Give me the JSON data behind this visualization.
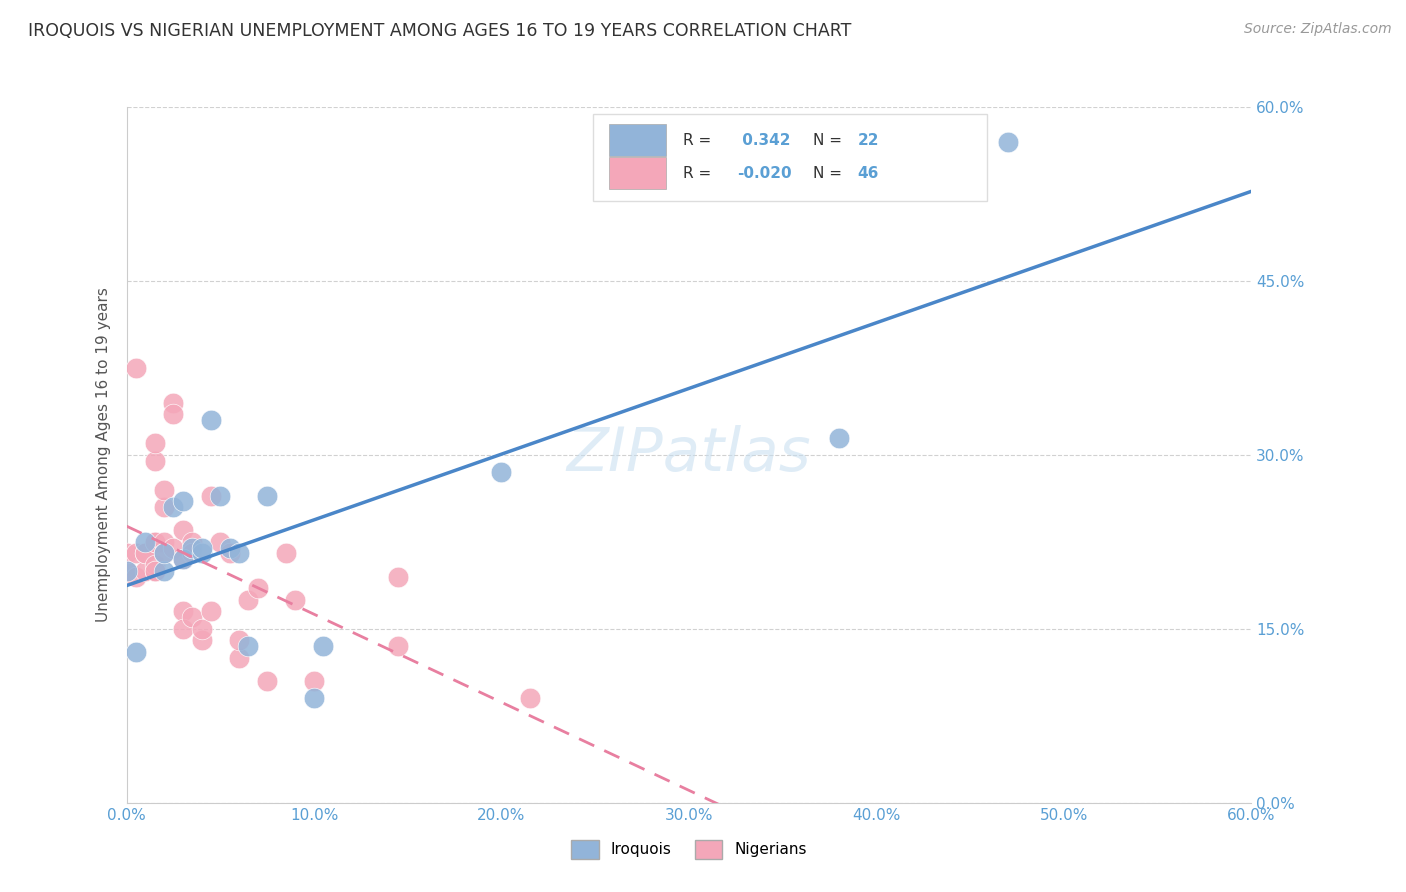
{
  "title": "IROQUOIS VS NIGERIAN UNEMPLOYMENT AMONG AGES 16 TO 19 YEARS CORRELATION CHART",
  "source": "Source: ZipAtlas.com",
  "ylabel": "Unemployment Among Ages 16 to 19 years",
  "xlim": [
    0.0,
    0.6
  ],
  "ylim": [
    0.0,
    0.6
  ],
  "xticks": [
    0.0,
    0.1,
    0.2,
    0.3,
    0.4,
    0.5,
    0.6
  ],
  "yticks": [
    0.0,
    0.15,
    0.3,
    0.45,
    0.6
  ],
  "ytick_labels_right": [
    "0.0%",
    "15.0%",
    "30.0%",
    "45.0%",
    "60.0%"
  ],
  "iroquois_color": "#92b4d9",
  "nigerian_color": "#f4a7b9",
  "iroquois_line_color": "#4a86c8",
  "nigerian_line_color": "#e87fa0",
  "R_iroquois": 0.342,
  "N_iroquois": 22,
  "R_nigerian": -0.02,
  "N_nigerian": 46,
  "watermark": "ZIPatlas",
  "iroquois_x": [
    0.0,
    0.005,
    0.01,
    0.02,
    0.02,
    0.025,
    0.03,
    0.03,
    0.035,
    0.04,
    0.04,
    0.045,
    0.05,
    0.055,
    0.06,
    0.065,
    0.075,
    0.1,
    0.105,
    0.2,
    0.38,
    0.47
  ],
  "iroquois_y": [
    0.2,
    0.13,
    0.225,
    0.2,
    0.215,
    0.255,
    0.21,
    0.26,
    0.22,
    0.215,
    0.22,
    0.33,
    0.265,
    0.22,
    0.215,
    0.135,
    0.265,
    0.09,
    0.135,
    0.285,
    0.315,
    0.57
  ],
  "nigerian_x": [
    0.0,
    0.0,
    0.005,
    0.005,
    0.005,
    0.01,
    0.01,
    0.01,
    0.015,
    0.015,
    0.015,
    0.015,
    0.015,
    0.015,
    0.015,
    0.02,
    0.02,
    0.02,
    0.02,
    0.025,
    0.025,
    0.025,
    0.03,
    0.03,
    0.03,
    0.03,
    0.035,
    0.035,
    0.035,
    0.04,
    0.04,
    0.045,
    0.045,
    0.05,
    0.055,
    0.06,
    0.06,
    0.065,
    0.07,
    0.075,
    0.085,
    0.09,
    0.1,
    0.145,
    0.145,
    0.215
  ],
  "nigerian_y": [
    0.2,
    0.215,
    0.195,
    0.215,
    0.375,
    0.2,
    0.215,
    0.215,
    0.2,
    0.225,
    0.295,
    0.205,
    0.31,
    0.2,
    0.225,
    0.255,
    0.225,
    0.215,
    0.27,
    0.22,
    0.345,
    0.335,
    0.21,
    0.235,
    0.165,
    0.15,
    0.16,
    0.225,
    0.215,
    0.14,
    0.15,
    0.265,
    0.165,
    0.225,
    0.215,
    0.125,
    0.14,
    0.175,
    0.185,
    0.105,
    0.215,
    0.175,
    0.105,
    0.195,
    0.135,
    0.09
  ],
  "background_color": "#ffffff",
  "grid_color": "#cccccc",
  "title_color": "#333333",
  "axis_label_color": "#5a9fd4"
}
